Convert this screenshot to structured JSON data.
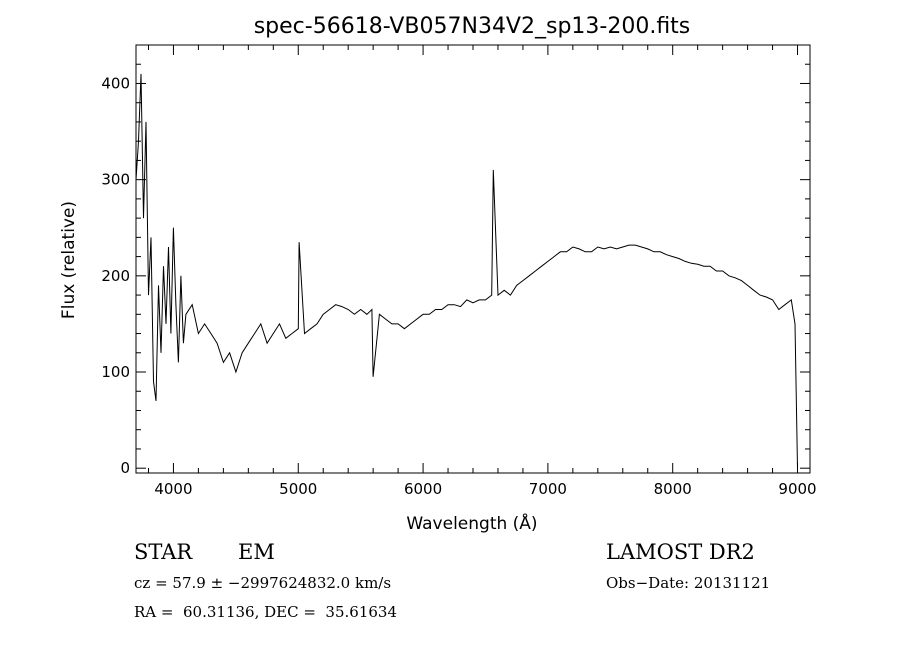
{
  "chart_data": {
    "type": "line",
    "title": "spec-56618-VB057N34V2_sp13-200.fits",
    "xlabel": "Wavelength (Å)",
    "ylabel": "Flux (relative)",
    "xlim": [
      3700,
      9100
    ],
    "ylim": [
      -5,
      440
    ],
    "x_ticks": [
      4000,
      5000,
      6000,
      7000,
      8000,
      9000
    ],
    "y_ticks": [
      0,
      100,
      200,
      300,
      400
    ],
    "grid": false,
    "series": [
      {
        "x": [
          3700,
          3720,
          3740,
          3760,
          3780,
          3800,
          3820,
          3840,
          3860,
          3880,
          3900,
          3920,
          3940,
          3960,
          3980,
          4000,
          4020,
          4040,
          4060,
          4080,
          4100,
          4150,
          4200,
          4250,
          4300,
          4350,
          4400,
          4450,
          4500,
          4550,
          4600,
          4650,
          4700,
          4750,
          4800,
          4850,
          4900,
          4950,
          5000,
          5007,
          5050,
          5100,
          5150,
          5200,
          5250,
          5300,
          5350,
          5400,
          5450,
          5500,
          5550,
          5590,
          5600,
          5650,
          5700,
          5750,
          5800,
          5850,
          5900,
          5950,
          6000,
          6050,
          6100,
          6150,
          6200,
          6250,
          6300,
          6350,
          6400,
          6450,
          6500,
          6550,
          6563,
          6600,
          6650,
          6700,
          6750,
          6800,
          6850,
          6900,
          6950,
          7000,
          7050,
          7100,
          7150,
          7200,
          7250,
          7300,
          7350,
          7400,
          7450,
          7500,
          7550,
          7600,
          7650,
          7700,
          7750,
          7800,
          7850,
          7900,
          7950,
          8000,
          8050,
          8100,
          8150,
          8200,
          8250,
          8300,
          8350,
          8400,
          8450,
          8500,
          8550,
          8600,
          8650,
          8700,
          8750,
          8800,
          8850,
          8900,
          8950,
          8980,
          9000
        ],
        "y": [
          300,
          340,
          410,
          260,
          360,
          180,
          240,
          90,
          70,
          190,
          120,
          210,
          150,
          230,
          140,
          250,
          170,
          110,
          200,
          130,
          160,
          170,
          140,
          150,
          140,
          130,
          110,
          120,
          100,
          120,
          130,
          140,
          150,
          130,
          140,
          150,
          135,
          140,
          145,
          235,
          140,
          145,
          150,
          160,
          165,
          170,
          168,
          165,
          160,
          165,
          160,
          165,
          95,
          160,
          155,
          150,
          150,
          145,
          150,
          155,
          160,
          160,
          165,
          165,
          170,
          170,
          168,
          175,
          172,
          175,
          175,
          180,
          310,
          180,
          185,
          180,
          190,
          195,
          200,
          205,
          210,
          215,
          220,
          225,
          225,
          230,
          228,
          225,
          225,
          230,
          228,
          230,
          228,
          230,
          232,
          232,
          230,
          228,
          225,
          225,
          222,
          220,
          218,
          215,
          213,
          212,
          210,
          210,
          205,
          205,
          200,
          198,
          195,
          190,
          185,
          180,
          178,
          175,
          165,
          170,
          175,
          150,
          0
        ]
      }
    ]
  },
  "info": {
    "class_label": "STAR",
    "subclass_label": "EM",
    "survey_label": "LAMOST DR2",
    "cz_text": "cz = 57.9 ± −2997624832.0 km/s",
    "obs_date_text": "Obs−Date: 20131121",
    "radec_text": "RA =  60.31136, DEC =  35.61634"
  }
}
